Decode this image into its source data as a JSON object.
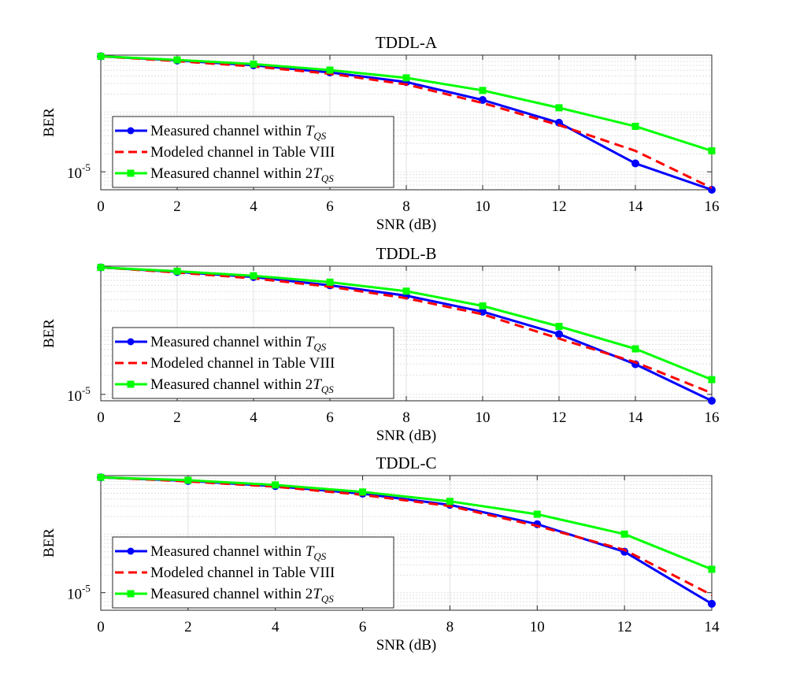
{
  "figure": {
    "colors": {
      "measured_tqs": "#0000ff",
      "modeled": "#ff0000",
      "measured_2tqs": "#00ff00",
      "grid": "#e0e0e0",
      "axis": "#262626"
    }
  },
  "chart_data": [
    {
      "type": "line",
      "title": "TDDL-A",
      "xlabel": "SNR (dB)",
      "ylabel": "BER",
      "ytick_label": "10",
      "ytick_exponent": "-5",
      "xlim": [
        0,
        16
      ],
      "ylim_log10": [
        -5.3,
        -3.05
      ],
      "x": [
        0,
        2,
        4,
        6,
        8,
        10,
        12,
        14,
        16
      ],
      "x_tick_labels": [
        "0",
        "2",
        "4",
        "6",
        "8",
        "10",
        "12",
        "14",
        "16"
      ],
      "legend": {
        "placement": "bottom-left",
        "entries": [
          {
            "pre": "Measured channel within ",
            "sym": "T",
            "sub": "QS"
          },
          {
            "pre": "Modeled channel in Table VIII",
            "sym": "",
            "sub": ""
          },
          {
            "pre": "Measured channel within 2",
            "sym": "T",
            "sub": "QS"
          }
        ]
      },
      "series": [
        {
          "name": "Measured channel within T_QS",
          "style": "solid-circle",
          "log10_values": [
            -3.07,
            -3.14,
            -3.22,
            -3.34,
            -3.5,
            -3.8,
            -4.18,
            -4.86,
            -5.3
          ]
        },
        {
          "name": "Modeled channel in Table VIII",
          "style": "dashed",
          "log10_values": [
            -3.07,
            -3.15,
            -3.24,
            -3.36,
            -3.54,
            -3.85,
            -4.22,
            -4.65,
            -5.27
          ]
        },
        {
          "name": "Measured channel within 2T_QS",
          "style": "solid-square",
          "log10_values": [
            -3.07,
            -3.13,
            -3.2,
            -3.3,
            -3.43,
            -3.64,
            -3.93,
            -4.24,
            -4.65
          ]
        }
      ]
    },
    {
      "type": "line",
      "title": "TDDL-B",
      "xlabel": "SNR (dB)",
      "ylabel": "BER",
      "ytick_label": "10",
      "ytick_exponent": "-5",
      "xlim": [
        0,
        16
      ],
      "ylim_log10": [
        -5.1,
        -3.0
      ],
      "x": [
        0,
        2,
        4,
        6,
        8,
        10,
        12,
        14,
        16
      ],
      "x_tick_labels": [
        "0",
        "2",
        "4",
        "6",
        "8",
        "10",
        "12",
        "14",
        "16"
      ],
      "legend": {
        "placement": "bottom-left",
        "entries": [
          {
            "pre": "Measured channel within ",
            "sym": "T",
            "sub": "QS"
          },
          {
            "pre": "Modeled channel in Table VIII",
            "sym": "",
            "sub": ""
          },
          {
            "pre": "Measured channel within 2",
            "sym": "T",
            "sub": "QS"
          }
        ]
      },
      "series": [
        {
          "name": "Measured channel within T_QS",
          "style": "solid-circle",
          "log10_values": [
            -3.02,
            -3.09,
            -3.17,
            -3.3,
            -3.46,
            -3.71,
            -4.06,
            -4.53,
            -5.1
          ]
        },
        {
          "name": "Modeled channel in Table VIII",
          "style": "dashed",
          "log10_values": [
            -3.02,
            -3.1,
            -3.19,
            -3.32,
            -3.5,
            -3.75,
            -4.13,
            -4.5,
            -4.98
          ]
        },
        {
          "name": "Measured channel within 2T_QS",
          "style": "solid-square",
          "log10_values": [
            -3.02,
            -3.08,
            -3.15,
            -3.25,
            -3.39,
            -3.62,
            -3.94,
            -4.29,
            -4.77
          ]
        }
      ]
    },
    {
      "type": "line",
      "title": "TDDL-C",
      "xlabel": "SNR (dB)",
      "ylabel": "BER",
      "ytick_label": "10",
      "ytick_exponent": "-5",
      "xlim": [
        0,
        14
      ],
      "ylim_log10": [
        -5.3,
        -3.0
      ],
      "x": [
        0,
        2,
        4,
        6,
        8,
        10,
        12,
        14
      ],
      "x_tick_labels": [
        "0",
        "2",
        "4",
        "6",
        "8",
        "10",
        "12",
        "14"
      ],
      "legend": {
        "placement": "bottom-left",
        "entries": [
          {
            "pre": "Measured channel within ",
            "sym": "T",
            "sub": "QS"
          },
          {
            "pre": "Modeled channel in Table VIII",
            "sym": "",
            "sub": ""
          },
          {
            "pre": "Measured channel within 2",
            "sym": "T",
            "sub": "QS"
          }
        ]
      },
      "series": [
        {
          "name": "Measured channel within T_QS",
          "style": "solid-circle",
          "log10_values": [
            -3.03,
            -3.09,
            -3.18,
            -3.31,
            -3.5,
            -3.83,
            -4.3,
            -5.19
          ]
        },
        {
          "name": "Modeled channel in Table VIII",
          "style": "dashed",
          "log10_values": [
            -3.03,
            -3.1,
            -3.19,
            -3.33,
            -3.52,
            -3.86,
            -4.27,
            -5.04
          ]
        },
        {
          "name": "Measured channel within 2T_QS",
          "style": "solid-square",
          "log10_values": [
            -3.03,
            -3.08,
            -3.16,
            -3.28,
            -3.44,
            -3.66,
            -4.0,
            -4.6
          ]
        }
      ]
    }
  ]
}
